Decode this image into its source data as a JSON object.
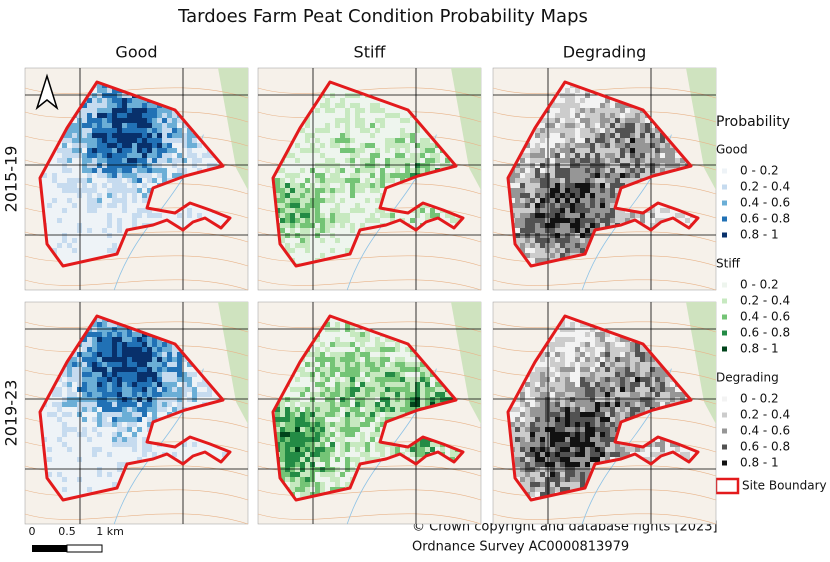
{
  "title": "Tardoes Farm Peat Condition Probability Maps",
  "columns": [
    "Good",
    "Stiff",
    "Degrading"
  ],
  "rows": [
    "2015-19",
    "2019-23"
  ],
  "legend": {
    "title": "Probability",
    "groups": [
      {
        "name": "Good",
        "items": [
          "0 - 0.2",
          "0.2 - 0.4",
          "0.4 - 0.6",
          "0.6 - 0.8",
          "0.8 - 1"
        ]
      },
      {
        "name": "Stiff",
        "items": [
          "0 - 0.2",
          "0.2 - 0.4",
          "0.4 - 0.6",
          "0.6 - 0.8",
          "0.8 - 1"
        ]
      },
      {
        "name": "Degrading",
        "items": [
          "0 - 0.2",
          "0.2 - 0.4",
          "0.4 - 0.6",
          "0.6 - 0.8",
          "0.8 - 1"
        ]
      }
    ],
    "boundary": "Site Boundary"
  },
  "scale_bar": [
    "0",
    "0.5",
    "1 km"
  ],
  "credits": [
    "© Crown copyright and database rights [2023]",
    "Ordnance Survey AC0000813979"
  ]
}
